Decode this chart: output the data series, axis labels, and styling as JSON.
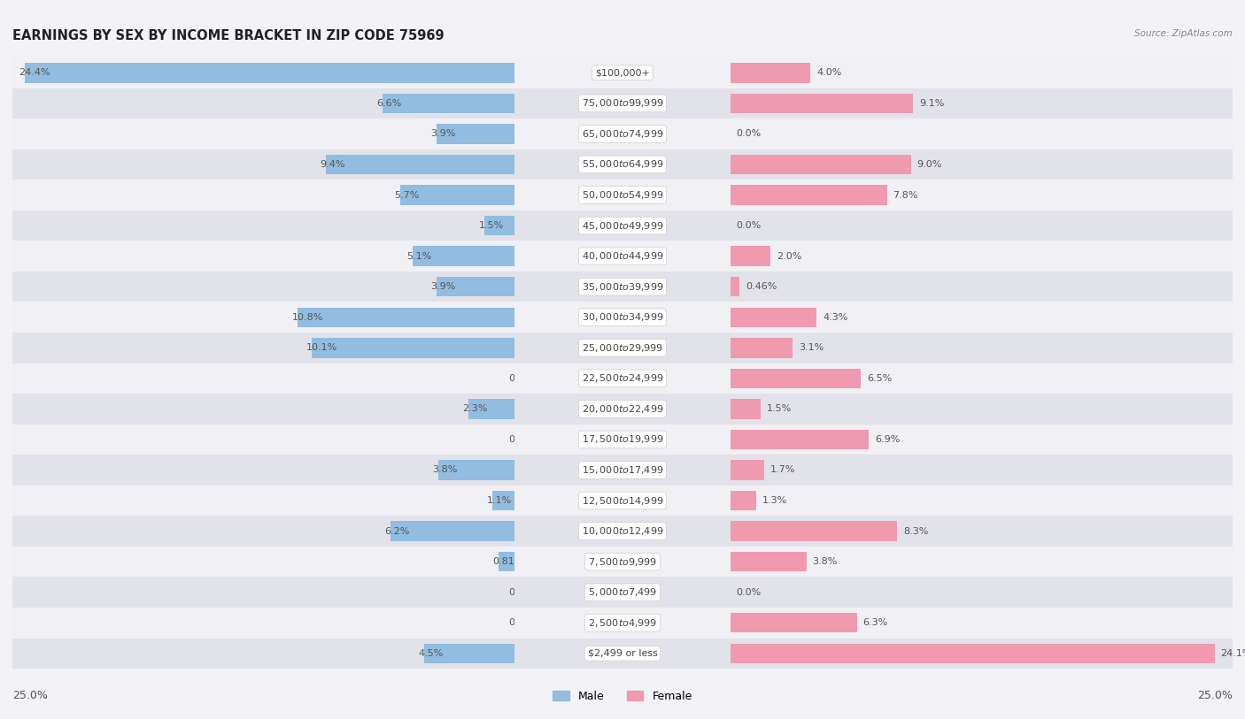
{
  "title": "EARNINGS BY SEX BY INCOME BRACKET IN ZIP CODE 75969",
  "source": "Source: ZipAtlas.com",
  "categories": [
    "$2,499 or less",
    "$2,500 to $4,999",
    "$5,000 to $7,499",
    "$7,500 to $9,999",
    "$10,000 to $12,499",
    "$12,500 to $14,999",
    "$15,000 to $17,499",
    "$17,500 to $19,999",
    "$20,000 to $22,499",
    "$22,500 to $24,999",
    "$25,000 to $29,999",
    "$30,000 to $34,999",
    "$35,000 to $39,999",
    "$40,000 to $44,999",
    "$45,000 to $49,999",
    "$50,000 to $54,999",
    "$55,000 to $64,999",
    "$65,000 to $74,999",
    "$75,000 to $99,999",
    "$100,000+"
  ],
  "male": [
    4.5,
    0.0,
    0.0,
    0.81,
    6.2,
    1.1,
    3.8,
    0.0,
    2.3,
    0.0,
    10.1,
    10.8,
    3.9,
    5.1,
    1.5,
    5.7,
    9.4,
    3.9,
    6.6,
    24.4
  ],
  "female": [
    24.1,
    6.3,
    0.0,
    3.8,
    8.3,
    1.3,
    1.7,
    6.9,
    1.5,
    6.5,
    3.1,
    4.3,
    0.46,
    2.0,
    0.0,
    7.8,
    9.0,
    0.0,
    9.1,
    4.0
  ],
  "male_color": "#92bce0",
  "female_color": "#f09ab0",
  "male_label": "Male",
  "female_label": "Female",
  "xlim": 25.0,
  "bar_height": 0.65,
  "bg_light": "#f0f0f5",
  "bg_dark": "#e2e2ea",
  "title_fontsize": 10.5,
  "label_fontsize": 8.0,
  "value_fontsize": 8.0,
  "tick_fontsize": 9.0,
  "value_color": "#555555",
  "label_text_color": "#444444"
}
